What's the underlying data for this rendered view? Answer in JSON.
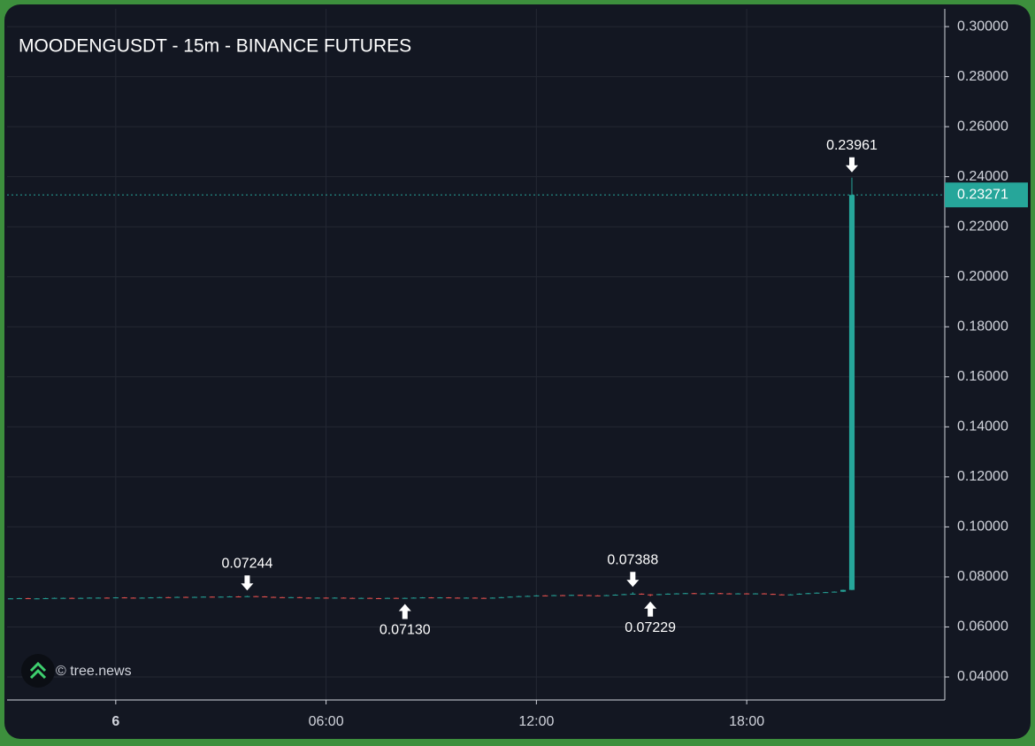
{
  "chart_data": {
    "type": "candlestick",
    "title": "MOODENGUSDT - 15m - BINANCE FUTURES",
    "watermark": "© tree.news",
    "up_color": "#26a69a",
    "down_color": "#ef5350",
    "grid": true,
    "xlim": [
      -3.1,
      23.65
    ],
    "ylim": [
      0.0308,
      0.3071
    ],
    "xticks": [
      {
        "value": 0,
        "label": "6"
      },
      {
        "value": 6,
        "label": "06:00"
      },
      {
        "value": 12,
        "label": "12:00"
      },
      {
        "value": 18,
        "label": "18:00"
      }
    ],
    "yticks": [
      {
        "value": 0.04,
        "label": "0.04000"
      },
      {
        "value": 0.06,
        "label": "0.06000"
      },
      {
        "value": 0.08,
        "label": "0.08000"
      },
      {
        "value": 0.1,
        "label": "0.10000"
      },
      {
        "value": 0.12,
        "label": "0.12000"
      },
      {
        "value": 0.14,
        "label": "0.14000"
      },
      {
        "value": 0.16,
        "label": "0.16000"
      },
      {
        "value": 0.18,
        "label": "0.18000"
      },
      {
        "value": 0.2,
        "label": "0.20000"
      },
      {
        "value": 0.22,
        "label": "0.22000"
      },
      {
        "value": 0.24,
        "label": "0.24000"
      },
      {
        "value": 0.26,
        "label": "0.26000"
      },
      {
        "value": 0.28,
        "label": "0.28000"
      },
      {
        "value": 0.3,
        "label": "0.30000"
      }
    ],
    "x": [
      -3,
      -2.75,
      -2.5,
      -2.25,
      -2,
      -1.75,
      -1.5,
      -1.25,
      -1,
      -0.75,
      -0.5,
      -0.25,
      0,
      0.25,
      0.5,
      0.75,
      1,
      1.25,
      1.5,
      1.75,
      2,
      2.25,
      2.5,
      2.75,
      3,
      3.25,
      3.5,
      3.75,
      4,
      4.25,
      4.5,
      4.75,
      5,
      5.25,
      5.5,
      5.75,
      6,
      6.25,
      6.5,
      6.75,
      7,
      7.25,
      7.5,
      7.75,
      8,
      8.25,
      8.5,
      8.75,
      9,
      9.25,
      9.5,
      9.75,
      10,
      10.25,
      10.5,
      10.75,
      11,
      11.25,
      11.5,
      11.75,
      12,
      12.25,
      12.5,
      12.75,
      13,
      13.25,
      13.5,
      13.75,
      14,
      14.25,
      14.5,
      14.75,
      15,
      15.25,
      15.5,
      15.75,
      16,
      16.25,
      16.5,
      16.75,
      17,
      17.25,
      17.5,
      17.75,
      18,
      18.25,
      18.5,
      18.75,
      19,
      19.25,
      19.5,
      19.75,
      20,
      20.25,
      20.5,
      20.75,
      21
    ],
    "open": [
      0.0714,
      0.0714,
      0.0715,
      0.0714,
      0.0714,
      0.0715,
      0.0716,
      0.0716,
      0.0715,
      0.0716,
      0.0717,
      0.0717,
      0.0716,
      0.0718,
      0.0717,
      0.0716,
      0.0717,
      0.0718,
      0.0719,
      0.0718,
      0.072,
      0.0719,
      0.072,
      0.0721,
      0.072,
      0.0721,
      0.0722,
      0.0721,
      0.0723,
      0.0722,
      0.072,
      0.0719,
      0.0718,
      0.0719,
      0.0717,
      0.0716,
      0.0717,
      0.0716,
      0.0717,
      0.0716,
      0.0715,
      0.0716,
      0.0715,
      0.0714,
      0.0716,
      0.0715,
      0.0716,
      0.0717,
      0.0718,
      0.0717,
      0.0718,
      0.0717,
      0.0716,
      0.0717,
      0.0716,
      0.0715,
      0.0717,
      0.0719,
      0.0721,
      0.0723,
      0.0724,
      0.0726,
      0.0725,
      0.0727,
      0.0726,
      0.0728,
      0.0727,
      0.0726,
      0.0725,
      0.0727,
      0.0729,
      0.0731,
      0.0733,
      0.073,
      0.0728,
      0.0731,
      0.0733,
      0.0734,
      0.0735,
      0.0733,
      0.0734,
      0.0735,
      0.0734,
      0.0733,
      0.0734,
      0.0733,
      0.0734,
      0.0732,
      0.073,
      0.0728,
      0.073,
      0.0733,
      0.0735,
      0.0737,
      0.0739,
      0.0741,
      0.0748
    ],
    "high": [
      0.0715,
      0.0716,
      0.0716,
      0.0715,
      0.0716,
      0.0717,
      0.0717,
      0.0717,
      0.0717,
      0.0718,
      0.0718,
      0.0718,
      0.0719,
      0.0719,
      0.0718,
      0.0718,
      0.0719,
      0.072,
      0.072,
      0.0721,
      0.0721,
      0.0721,
      0.0722,
      0.0722,
      0.0722,
      0.0723,
      0.0723,
      0.07244,
      0.0724,
      0.0723,
      0.0721,
      0.072,
      0.072,
      0.072,
      0.0718,
      0.0718,
      0.0718,
      0.0718,
      0.0718,
      0.0717,
      0.0717,
      0.0717,
      0.0716,
      0.0717,
      0.0717,
      0.0717,
      0.0718,
      0.0719,
      0.0719,
      0.0719,
      0.0719,
      0.0718,
      0.0718,
      0.0718,
      0.0717,
      0.0718,
      0.072,
      0.0722,
      0.0724,
      0.0725,
      0.0727,
      0.0727,
      0.0728,
      0.0728,
      0.0729,
      0.0729,
      0.0728,
      0.0727,
      0.0728,
      0.073,
      0.0732,
      0.07388,
      0.0734,
      0.0731,
      0.0732,
      0.0734,
      0.0735,
      0.0736,
      0.0736,
      0.0735,
      0.0736,
      0.0736,
      0.0735,
      0.0735,
      0.0735,
      0.0735,
      0.0735,
      0.0733,
      0.0731,
      0.0731,
      0.0734,
      0.0736,
      0.0738,
      0.074,
      0.0742,
      0.0749,
      0.23961
    ],
    "low": [
      0.0713,
      0.0713,
      0.0713,
      0.0713,
      0.0713,
      0.0714,
      0.0715,
      0.0714,
      0.0714,
      0.0715,
      0.0716,
      0.0715,
      0.0715,
      0.0716,
      0.0715,
      0.0715,
      0.0716,
      0.0717,
      0.0717,
      0.0717,
      0.0718,
      0.0718,
      0.0719,
      0.0719,
      0.0719,
      0.072,
      0.072,
      0.072,
      0.0721,
      0.0719,
      0.0718,
      0.0717,
      0.0717,
      0.0716,
      0.0715,
      0.0715,
      0.0715,
      0.0715,
      0.0715,
      0.0714,
      0.0714,
      0.0714,
      0.0713,
      0.0713,
      0.0714,
      0.0713,
      0.0715,
      0.0716,
      0.0716,
      0.0716,
      0.0716,
      0.0715,
      0.0715,
      0.0715,
      0.0714,
      0.0714,
      0.0716,
      0.0718,
      0.072,
      0.0722,
      0.0723,
      0.0724,
      0.0724,
      0.0725,
      0.0725,
      0.0726,
      0.0725,
      0.0724,
      0.0724,
      0.0726,
      0.0728,
      0.073,
      0.0729,
      0.07229,
      0.0727,
      0.073,
      0.0732,
      0.0733,
      0.0732,
      0.0732,
      0.0733,
      0.0733,
      0.0732,
      0.0732,
      0.0732,
      0.0732,
      0.0731,
      0.0729,
      0.0727,
      0.0727,
      0.0729,
      0.0732,
      0.0734,
      0.0736,
      0.0738,
      0.074,
      0.0747
    ],
    "close": [
      0.0714,
      0.0715,
      0.0714,
      0.0714,
      0.0715,
      0.0716,
      0.0716,
      0.0715,
      0.0716,
      0.0717,
      0.0717,
      0.0716,
      0.0718,
      0.0717,
      0.0716,
      0.0717,
      0.0718,
      0.0719,
      0.0718,
      0.072,
      0.0719,
      0.072,
      0.0721,
      0.072,
      0.0721,
      0.0722,
      0.0721,
      0.0723,
      0.0722,
      0.072,
      0.0719,
      0.0718,
      0.0719,
      0.0717,
      0.0716,
      0.0717,
      0.0716,
      0.0717,
      0.0716,
      0.0715,
      0.0716,
      0.0715,
      0.0714,
      0.0716,
      0.0715,
      0.0716,
      0.0717,
      0.0718,
      0.0717,
      0.0718,
      0.0717,
      0.0716,
      0.0717,
      0.0716,
      0.0715,
      0.0717,
      0.0719,
      0.0721,
      0.0723,
      0.0724,
      0.0726,
      0.0725,
      0.0727,
      0.0726,
      0.0728,
      0.0727,
      0.0726,
      0.0725,
      0.0727,
      0.0729,
      0.0731,
      0.0733,
      0.073,
      0.0728,
      0.0731,
      0.0733,
      0.0734,
      0.0735,
      0.0733,
      0.0734,
      0.0735,
      0.0734,
      0.0733,
      0.0734,
      0.0733,
      0.0734,
      0.0732,
      0.073,
      0.0728,
      0.073,
      0.0733,
      0.0735,
      0.0737,
      0.0739,
      0.0741,
      0.0748,
      0.23271
    ],
    "annotations": [
      {
        "x": 3.75,
        "value": 0.07244,
        "label": "0.07244",
        "kind": "high"
      },
      {
        "x": 8.25,
        "value": 0.0713,
        "label": "0.07130",
        "kind": "low"
      },
      {
        "x": 14.75,
        "value": 0.07388,
        "label": "0.07388",
        "kind": "high"
      },
      {
        "x": 15.25,
        "value": 0.07229,
        "label": "0.07229",
        "kind": "low"
      },
      {
        "x": 21,
        "value": 0.23961,
        "label": "0.23961",
        "kind": "high"
      }
    ],
    "last_price": {
      "value": 0.23271,
      "label": "0.23271"
    }
  }
}
